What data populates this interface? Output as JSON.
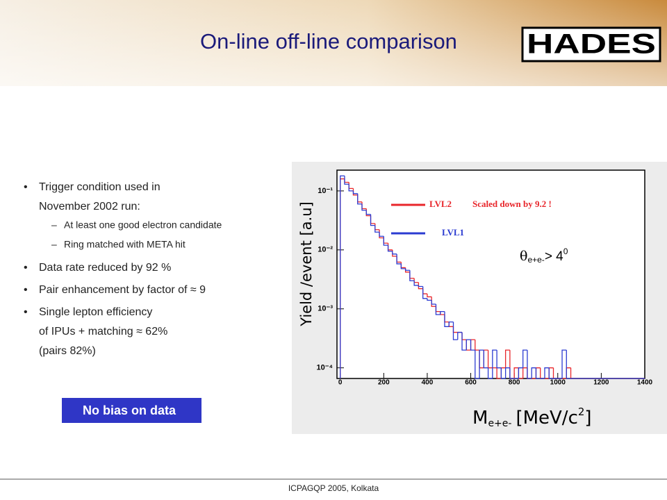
{
  "title": "On-line off-line comparison",
  "logo": "HADES",
  "bullets": [
    {
      "text": [
        "Trigger condition used in",
        "November 2002 run:"
      ],
      "sub": [
        "At least one good electron candidate",
        "Ring matched with META hit"
      ]
    },
    {
      "text": [
        "Data rate reduced by 92 %"
      ],
      "sub": []
    },
    {
      "text": [
        "Pair enhancement by factor of ≈ 9"
      ],
      "sub": []
    },
    {
      "text": [
        "Single lepton efficiency",
        "of IPUs + matching  ≈ 62%",
        "(pairs 82%)"
      ],
      "sub": []
    }
  ],
  "box": "No bias on data",
  "footer": "ICPAGQP 2005, Kolkata",
  "chart_data": {
    "type": "histogram",
    "ylabel": "Yield /event [a.u]",
    "xlabel": {
      "main": "M",
      "sub": "e+e-",
      "unit": "[MeV/c",
      "sup": "2",
      "end": "]"
    },
    "cut": {
      "theta": "θ",
      "sub": "e+e-",
      "rel": "> 4",
      "sup": "0"
    },
    "note": "Scaled down by 9.2 !",
    "log_y": true,
    "bins": [
      0,
      20,
      40,
      60,
      80,
      100,
      120,
      140,
      160,
      180,
      200,
      220,
      240,
      260,
      280,
      300,
      320,
      340,
      360,
      380,
      400,
      420,
      440,
      460,
      480,
      500,
      520,
      540,
      560,
      580,
      600,
      620,
      640,
      660,
      680,
      700,
      720,
      740,
      760,
      780,
      800,
      820,
      840,
      860,
      880,
      900,
      920,
      940,
      960,
      980,
      1000,
      1020,
      1040,
      1060,
      1080,
      1100,
      1120,
      1140,
      1160,
      1180,
      1200,
      1220,
      1240,
      1260,
      1280,
      1300,
      1320,
      1340,
      1360,
      1380,
      1400
    ],
    "series": [
      {
        "name": "LVL2",
        "color": "#e8262b",
        "values": [
          0.16,
          0.14,
          0.11,
          0.085,
          0.065,
          0.05,
          0.038,
          0.028,
          0.022,
          0.016,
          0.013,
          0.01,
          0.0078,
          0.0062,
          0.005,
          0.0042,
          0.0033,
          0.0028,
          0.0022,
          0.0018,
          0.0016,
          0.0011,
          0.0009,
          0.0008,
          0.0006,
          0.0005,
          0.0004,
          0.0004,
          0.0003,
          0.0002,
          0.0003,
          0.0002,
          0.0001,
          0.0002,
          0.0001,
          0.0001,
          0,
          0.0001,
          0.0002,
          0,
          0.0001,
          0,
          0.0001,
          0,
          0,
          0.0001,
          0,
          0,
          0.0001,
          0,
          0,
          0,
          0.0001,
          0,
          0,
          0,
          0,
          0,
          0,
          0,
          0,
          0,
          0,
          0,
          0,
          0,
          0,
          0,
          0,
          0
        ]
      },
      {
        "name": "LVL1",
        "color": "#2b3bd1",
        "values": [
          0.18,
          0.13,
          0.1,
          0.09,
          0.06,
          0.047,
          0.04,
          0.026,
          0.02,
          0.017,
          0.012,
          0.0095,
          0.0085,
          0.0058,
          0.0048,
          0.0045,
          0.003,
          0.0025,
          0.0024,
          0.0015,
          0.0014,
          0.0012,
          0.0008,
          0.0009,
          0.0005,
          0.0006,
          0.0003,
          0.0004,
          0.0002,
          0.0003,
          0.0002,
          0,
          0.0002,
          0.0001,
          0,
          0.0002,
          0.0001,
          0,
          0.0001,
          0,
          0,
          0.0001,
          0.0002,
          0,
          0.0001,
          0,
          0,
          0.0001,
          0,
          0,
          0,
          0.0002,
          0,
          0,
          0,
          0,
          0,
          0,
          0,
          0,
          0,
          0,
          0,
          0,
          0,
          0,
          0,
          0,
          0,
          0
        ]
      }
    ],
    "xlim": [
      -15,
      1400
    ],
    "ylim": [
      6.6e-05,
      0.225
    ],
    "xticks": [
      0,
      200,
      400,
      600,
      800,
      1000,
      1200,
      1400
    ],
    "yticks": [
      {
        "value": 0.1,
        "label": "10⁻¹"
      },
      {
        "value": 0.01,
        "label": "10⁻²"
      },
      {
        "value": 0.001,
        "label": "10⁻³"
      },
      {
        "value": 0.0001,
        "label": "10⁻⁴"
      }
    ]
  }
}
